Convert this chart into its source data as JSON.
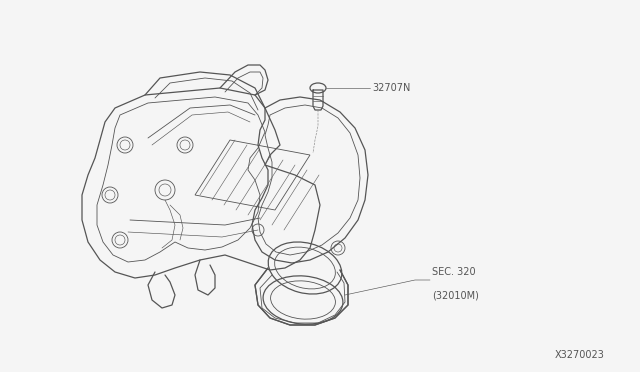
{
  "background_color": "#f5f5f5",
  "fig_width": 6.4,
  "fig_height": 3.72,
  "dpi": 100,
  "label_32707N": "32707N",
  "label_sec320_line1": "SEC. 320",
  "label_sec320_line2": "(32010M)",
  "label_partnum": "X3270023",
  "font_size_labels": 7.0,
  "font_size_partnum": 7.0,
  "line_color": "#555555",
  "text_color": "#555555",
  "lw_main": 0.9,
  "lw_inner": 0.6,
  "lw_detail": 0.45
}
